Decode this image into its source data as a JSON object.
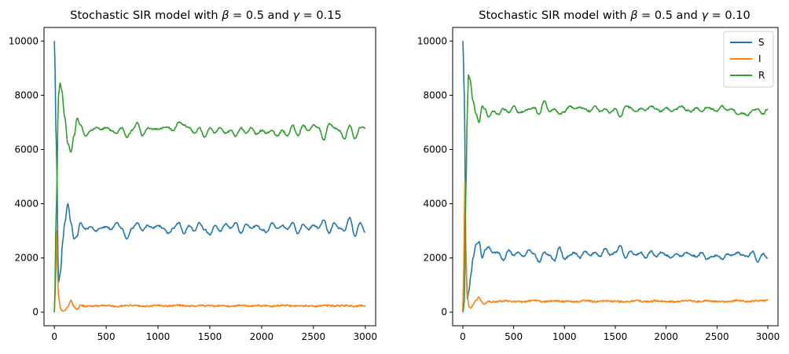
{
  "chart_data": [
    {
      "type": "line",
      "title": "Stochastic SIR model with β = 0.5 and γ = 0.15",
      "title_parts": {
        "pre": "Stochastic SIR model with ",
        "beta": "β",
        "eq1": " = 0.5 and ",
        "gamma": "γ",
        "eq2": " = 0.15"
      },
      "xlim": [
        -100,
        3100
      ],
      "ylim": [
        -500,
        10500
      ],
      "xticks": [
        0,
        500,
        1000,
        1500,
        2000,
        2500,
        3000
      ],
      "xtick_labels": [
        "0",
        "500",
        "1000",
        "1500",
        "2000",
        "2500",
        "3000"
      ],
      "yticks": [
        0,
        2000,
        4000,
        6000,
        8000,
        10000
      ],
      "ytick_labels": [
        "0",
        "2000",
        "4000",
        "6000",
        "8000",
        "10000"
      ],
      "grid": false,
      "legend": null,
      "series": [
        {
          "key": "S",
          "color": "#1f77b4",
          "x": [
            0,
            20,
            40,
            60,
            80,
            100,
            130,
            160,
            190,
            220,
            250,
            300,
            350,
            400,
            450,
            500,
            550,
            600,
            650,
            700,
            750,
            800,
            850,
            900,
            950,
            1000,
            1050,
            1100,
            1150,
            1200,
            1250,
            1300,
            1350,
            1400,
            1450,
            1500,
            1550,
            1600,
            1650,
            1700,
            1750,
            1800,
            1850,
            1900,
            1950,
            2000,
            2050,
            2100,
            2150,
            2200,
            2250,
            2300,
            2350,
            2400,
            2450,
            2500,
            2550,
            2600,
            2650,
            2700,
            2750,
            2800,
            2850,
            2900,
            2950,
            3000
          ],
          "y": [
            10000,
            6000,
            1100,
            1500,
            2600,
            3300,
            4000,
            3300,
            2700,
            2800,
            3300,
            3050,
            3150,
            3000,
            3100,
            3150,
            3050,
            3300,
            3100,
            2700,
            3100,
            3300,
            3000,
            3200,
            3100,
            3200,
            3100,
            2900,
            3100,
            3300,
            2900,
            3200,
            3000,
            3300,
            3050,
            2850,
            3200,
            3000,
            3250,
            3100,
            3300,
            2900,
            3250,
            3100,
            3200,
            3050,
            2950,
            3300,
            3100,
            3200,
            3050,
            3300,
            2900,
            3250,
            3050,
            3200,
            3100,
            3400,
            2900,
            3300,
            3100,
            3000,
            3500,
            2800,
            3300,
            2950
          ]
        },
        {
          "key": "I",
          "color": "#ff7f0e",
          "x": [
            0,
            10,
            20,
            30,
            40,
            60,
            80,
            100,
            130,
            160,
            190,
            220,
            250,
            300,
            400,
            500,
            600,
            700,
            800,
            900,
            1000,
            1100,
            1200,
            1300,
            1400,
            1500,
            1600,
            1700,
            1800,
            1900,
            2000,
            2100,
            2200,
            2300,
            2400,
            2500,
            2600,
            2700,
            2800,
            2900,
            3000
          ],
          "y": [
            0,
            900,
            3000,
            1500,
            600,
            120,
            40,
            60,
            200,
            450,
            200,
            100,
            250,
            220,
            230,
            240,
            210,
            250,
            240,
            220,
            250,
            230,
            260,
            220,
            250,
            230,
            240,
            220,
            250,
            230,
            240,
            220,
            250,
            230,
            240,
            220,
            250,
            230,
            240,
            220,
            250
          ]
        },
        {
          "key": "R",
          "color": "#2ca02c",
          "x": [
            0,
            20,
            40,
            55,
            70,
            100,
            130,
            160,
            190,
            220,
            250,
            300,
            350,
            400,
            450,
            500,
            550,
            600,
            650,
            700,
            750,
            800,
            850,
            900,
            950,
            1000,
            1050,
            1100,
            1150,
            1200,
            1250,
            1300,
            1350,
            1400,
            1450,
            1500,
            1550,
            1600,
            1650,
            1700,
            1750,
            1800,
            1850,
            1900,
            1950,
            2000,
            2050,
            2100,
            2150,
            2200,
            2250,
            2300,
            2350,
            2400,
            2450,
            2500,
            2550,
            2600,
            2650,
            2700,
            2750,
            2800,
            2850,
            2900,
            2950,
            3000
          ],
          "y": [
            0,
            4000,
            8000,
            8450,
            8200,
            7200,
            6200,
            5900,
            6500,
            7150,
            6900,
            6500,
            6700,
            6800,
            6750,
            6800,
            6700,
            6600,
            6800,
            6450,
            6700,
            7000,
            6500,
            6800,
            6750,
            6750,
            6800,
            6800,
            6700,
            7000,
            6900,
            6800,
            6600,
            6800,
            6450,
            6800,
            6600,
            6800,
            6600,
            6700,
            6500,
            6800,
            6600,
            6800,
            6550,
            6700,
            6600,
            6700,
            6500,
            6700,
            6500,
            6900,
            6500,
            6900,
            6700,
            6900,
            6800,
            6350,
            6950,
            6800,
            6700,
            6400,
            6900,
            6400,
            6800,
            6800
          ]
        }
      ]
    },
    {
      "type": "line",
      "title": "Stochastic SIR model with β = 0.5 and γ = 0.10",
      "title_parts": {
        "pre": "Stochastic SIR model with ",
        "beta": "β",
        "eq1": " = 0.5 and ",
        "gamma": "γ",
        "eq2": " = 0.10"
      },
      "xlim": [
        -100,
        3100
      ],
      "ylim": [
        -500,
        10500
      ],
      "xticks": [
        0,
        500,
        1000,
        1500,
        2000,
        2500,
        3000
      ],
      "xtick_labels": [
        "0",
        "500",
        "1000",
        "1500",
        "2000",
        "2500",
        "3000"
      ],
      "yticks": [
        0,
        2000,
        4000,
        6000,
        8000,
        10000
      ],
      "ytick_labels": [
        "0",
        "2000",
        "4000",
        "6000",
        "8000",
        "10000"
      ],
      "grid": false,
      "legend": "top-right",
      "series": [
        {
          "name": "S",
          "color": "#1f77b4",
          "x": [
            0,
            15,
            30,
            45,
            60,
            80,
            100,
            130,
            160,
            190,
            220,
            250,
            300,
            350,
            400,
            450,
            500,
            550,
            600,
            650,
            700,
            750,
            800,
            850,
            900,
            950,
            1000,
            1050,
            1100,
            1150,
            1200,
            1250,
            1300,
            1350,
            1400,
            1450,
            1500,
            1550,
            1600,
            1650,
            1700,
            1750,
            1800,
            1850,
            1900,
            1950,
            2000,
            2050,
            2100,
            2150,
            2200,
            2250,
            2300,
            2350,
            2400,
            2450,
            2500,
            2550,
            2600,
            2650,
            2700,
            2750,
            2800,
            2850,
            2900,
            2950,
            3000
          ],
          "y": [
            10000,
            8000,
            2000,
            500,
            800,
            1400,
            2000,
            2500,
            2600,
            2000,
            2300,
            2400,
            2200,
            2200,
            1900,
            2300,
            2100,
            2200,
            2050,
            2300,
            2150,
            1850,
            2200,
            2100,
            1900,
            2400,
            1950,
            2100,
            2200,
            2000,
            2250,
            2100,
            2200,
            2050,
            2350,
            2100,
            2200,
            2450,
            2000,
            2250,
            2100,
            2200,
            2000,
            2250,
            2050,
            2200,
            2100,
            2000,
            2150,
            2050,
            2200,
            2100,
            2050,
            2200,
            1950,
            2050,
            2100,
            1950,
            2150,
            2100,
            2200,
            2100,
            2050,
            2250,
            1850,
            2150,
            2000
          ]
        },
        {
          "name": "I",
          "color": "#ff7f0e",
          "x": [
            0,
            10,
            20,
            30,
            40,
            60,
            80,
            100,
            130,
            160,
            190,
            220,
            250,
            300,
            400,
            500,
            600,
            700,
            800,
            900,
            1000,
            1100,
            1200,
            1300,
            1400,
            1500,
            1600,
            1700,
            1800,
            1900,
            2000,
            2100,
            2200,
            2300,
            2400,
            2500,
            2600,
            2700,
            2800,
            2900,
            3000
          ],
          "y": [
            0,
            2000,
            4800,
            2500,
            800,
            200,
            150,
            280,
            450,
            550,
            350,
            300,
            400,
            380,
            420,
            400,
            380,
            430,
            390,
            420,
            400,
            380,
            430,
            390,
            420,
            400,
            380,
            430,
            390,
            420,
            400,
            380,
            430,
            390,
            420,
            400,
            380,
            430,
            390,
            420,
            430
          ]
        },
        {
          "name": "R",
          "color": "#2ca02c",
          "x": [
            0,
            15,
            30,
            45,
            55,
            70,
            100,
            130,
            160,
            190,
            220,
            250,
            300,
            350,
            400,
            450,
            500,
            550,
            600,
            650,
            700,
            750,
            800,
            850,
            900,
            950,
            1000,
            1050,
            1100,
            1150,
            1200,
            1250,
            1300,
            1350,
            1400,
            1450,
            1500,
            1550,
            1600,
            1650,
            1700,
            1750,
            1800,
            1850,
            1900,
            1950,
            2000,
            2050,
            2100,
            2150,
            2200,
            2250,
            2300,
            2350,
            2400,
            2450,
            2500,
            2550,
            2600,
            2650,
            2700,
            2750,
            2800,
            2850,
            2900,
            2950,
            3000
          ],
          "y": [
            0,
            400,
            4500,
            7500,
            8750,
            8600,
            7800,
            7300,
            7000,
            7600,
            7500,
            7200,
            7400,
            7300,
            7500,
            7350,
            7600,
            7350,
            7400,
            7500,
            7550,
            7300,
            7800,
            7400,
            7500,
            7300,
            7400,
            7600,
            7500,
            7550,
            7500,
            7400,
            7600,
            7400,
            7500,
            7350,
            7500,
            7200,
            7600,
            7550,
            7400,
            7500,
            7450,
            7600,
            7500,
            7400,
            7550,
            7400,
            7500,
            7600,
            7450,
            7400,
            7550,
            7400,
            7550,
            7500,
            7400,
            7600,
            7450,
            7500,
            7300,
            7350,
            7250,
            7450,
            7500,
            7300,
            7500
          ]
        }
      ]
    }
  ]
}
